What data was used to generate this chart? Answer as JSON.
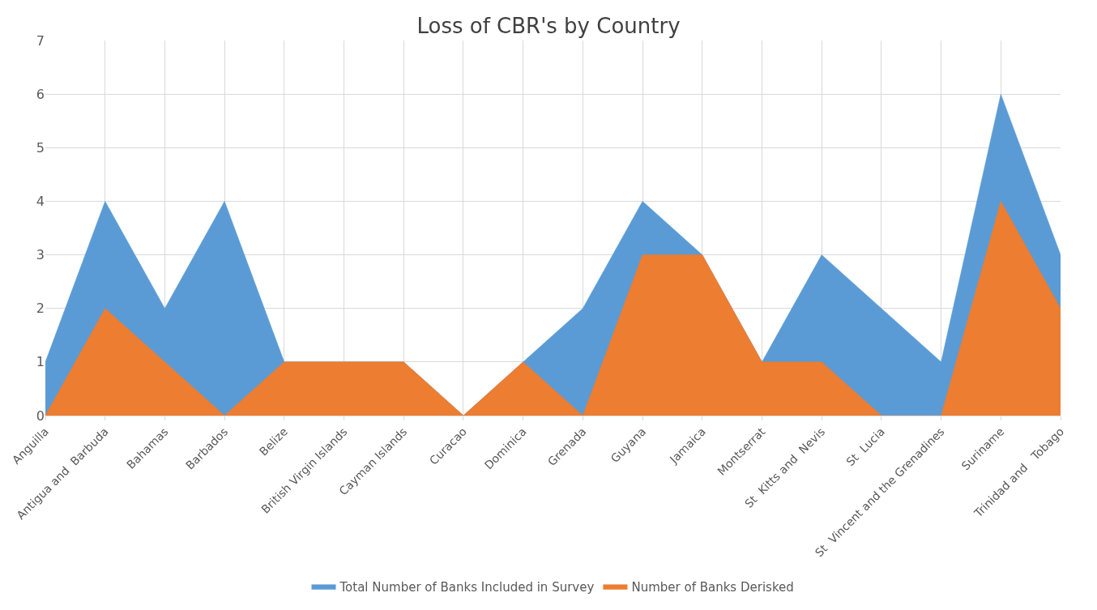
{
  "chart_data": {
    "type": "area",
    "title": "Loss of CBR's by Country",
    "categories": [
      "Anguilla",
      "Antigua and  Barbuda",
      "Bahamas",
      "Barbados",
      "Belize",
      "British Virgin Islands",
      "Cayman Islands",
      "Curacao",
      "Dominica",
      "Grenada",
      "Guyana",
      "Jamaica",
      "Montserrat",
      "St  Kitts and  Nevis",
      "St  Lucia",
      "St  Vincent and the Grenadines",
      "Suriname",
      "Trinidad and   Tobago"
    ],
    "series": [
      {
        "name": "Total Number of Banks Included in Survey",
        "color": "#5b9bd5",
        "values": [
          1,
          4,
          2,
          4,
          1,
          1,
          1,
          0,
          1,
          2,
          4,
          3,
          1,
          3,
          2,
          1,
          6,
          3
        ]
      },
      {
        "name": "Number of Banks Derisked",
        "color": "#ed7d31",
        "values": [
          0,
          2,
          1,
          0,
          1,
          1,
          1,
          0,
          1,
          0,
          3,
          3,
          1,
          1,
          0,
          0,
          4,
          2
        ]
      }
    ],
    "ylim": [
      0,
      7
    ],
    "yticks": [
      0,
      1,
      2,
      3,
      4,
      5,
      6,
      7
    ],
    "grid": true,
    "legend": "bottom"
  }
}
